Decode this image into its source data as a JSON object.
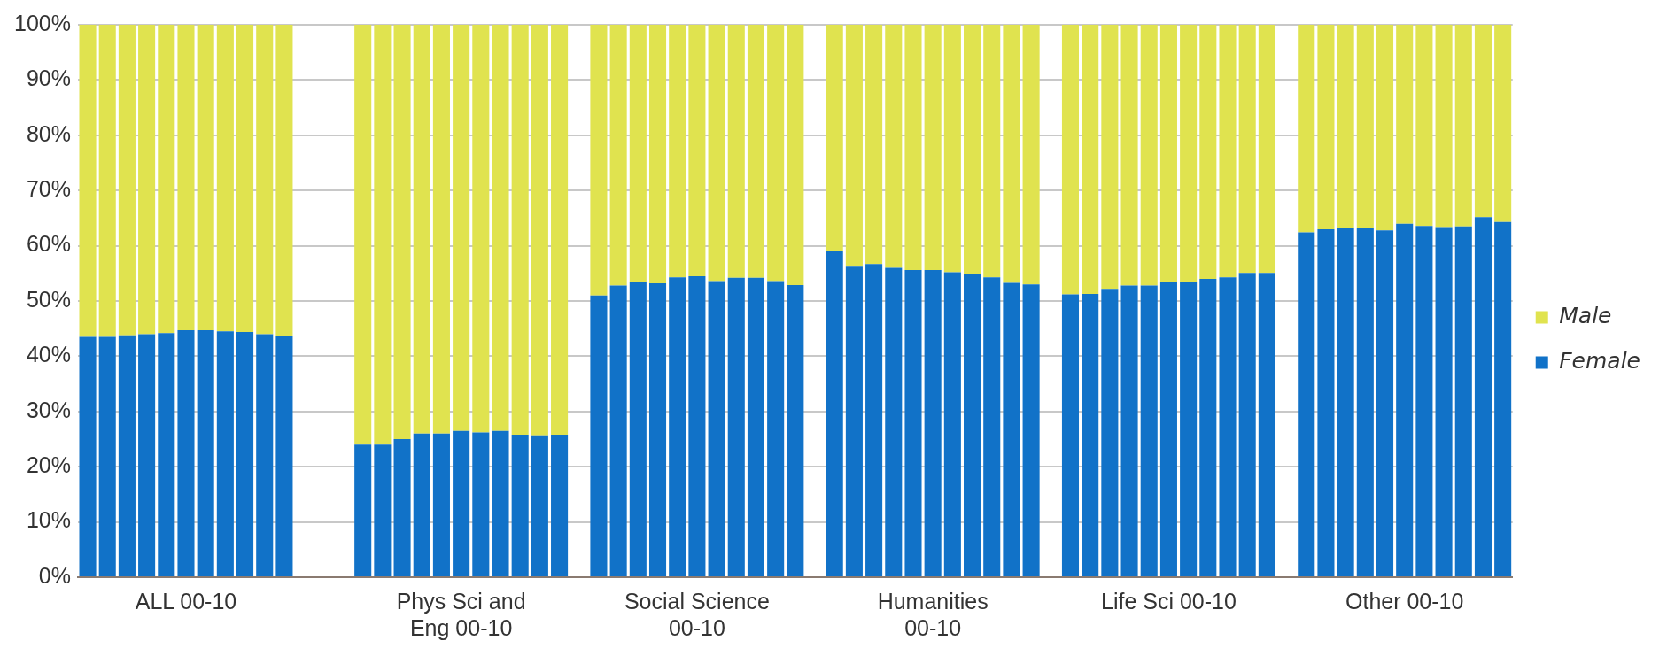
{
  "chart_data": {
    "type": "bar",
    "stacked": true,
    "categories": [
      null,
      null,
      null,
      null,
      null,
      "ALL 00-10",
      null,
      null,
      null,
      null,
      null,
      null,
      null,
      null,
      null,
      null,
      null,
      null,
      null,
      "Phys Sci and Eng 00-10",
      null,
      null,
      null,
      null,
      null,
      null,
      null,
      null,
      null,
      null,
      null,
      "Social Science 00-10",
      null,
      null,
      null,
      null,
      null,
      null,
      null,
      null,
      null,
      null,
      null,
      "Humanities 00-10",
      null,
      null,
      null,
      null,
      null,
      null,
      null,
      null,
      null,
      null,
      null,
      "Life Sci 00-10",
      null,
      null,
      null,
      null,
      null,
      null,
      null,
      null,
      null,
      null,
      null,
      "Other 00-10",
      null,
      null,
      null,
      null,
      null
    ],
    "series": [
      {
        "name": "Female",
        "color": "#1172c8",
        "values": [
          43.5,
          43.5,
          43.8,
          44,
          44.2,
          44.7,
          44.7,
          44.5,
          44.4,
          44,
          43.6,
          null,
          null,
          null,
          24,
          24,
          25,
          26,
          26,
          26.5,
          26.2,
          26.5,
          25.8,
          25.7,
          25.8,
          null,
          51,
          52.8,
          53.5,
          53.2,
          54.3,
          54.5,
          53.6,
          54.2,
          54.2,
          53.6,
          52.9,
          null,
          59,
          56.2,
          56.7,
          56,
          55.6,
          55.6,
          55.2,
          54.8,
          54.3,
          53.3,
          53,
          null,
          51.2,
          51.3,
          52.2,
          52.8,
          52.8,
          53.4,
          53.5,
          54,
          54.3,
          55.1,
          55.1,
          null,
          62.4,
          63,
          63.3,
          63.3,
          62.8,
          64,
          63.6,
          63.4,
          63.5,
          65.2,
          64.3
        ]
      },
      {
        "name": "Male",
        "color": "#e0e34f",
        "values": [
          56.5,
          56.5,
          56.2,
          56,
          55.8,
          55.3,
          55.3,
          55.5,
          55.6,
          56,
          56.4,
          null,
          null,
          null,
          76,
          76,
          75,
          74,
          74,
          73.5,
          73.8,
          73.5,
          74.2,
          74.3,
          74.2,
          null,
          49,
          47.2,
          46.5,
          46.8,
          45.7,
          45.5,
          46.4,
          45.8,
          45.8,
          46.4,
          47.1,
          null,
          41,
          43.8,
          43.3,
          44,
          44.4,
          44.4,
          44.8,
          45.2,
          45.7,
          46.7,
          47,
          null,
          48.8,
          48.7,
          47.8,
          47.2,
          47.2,
          46.6,
          46.5,
          46,
          45.7,
          44.9,
          44.9,
          null,
          37.6,
          37,
          36.7,
          36.7,
          37.2,
          36,
          36.4,
          36.6,
          36.5,
          34.8,
          35.7
        ]
      }
    ],
    "ylim": [
      0,
      100
    ],
    "yticks": [
      {
        "value": 0,
        "label": "0%"
      },
      {
        "value": 10,
        "label": "10%"
      },
      {
        "value": 20,
        "label": "20%"
      },
      {
        "value": 30,
        "label": "30%"
      },
      {
        "value": 40,
        "label": "40%"
      },
      {
        "value": 50,
        "label": "50%"
      },
      {
        "value": 60,
        "label": "60%"
      },
      {
        "value": 70,
        "label": "70%"
      },
      {
        "value": 80,
        "label": "80%"
      },
      {
        "value": 90,
        "label": "90%"
      },
      {
        "value": 100,
        "label": "100%"
      }
    ],
    "grid": "y",
    "legend": "right"
  }
}
